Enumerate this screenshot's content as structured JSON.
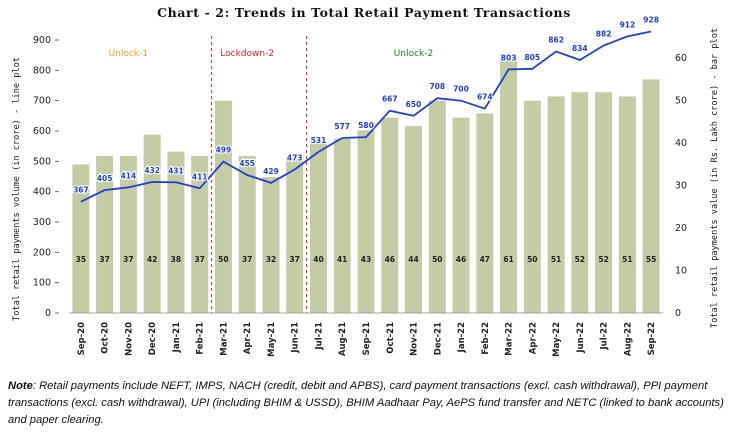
{
  "chart_data": {
    "type": "bar+line",
    "title": "Chart - 2: Trends in Total Retail Payment Transactions",
    "ylabel_left": "Total retail payments volume (in crore) - line plot",
    "ylabel_right": "Total retail payments value (in Rs. Lakh crore) - bar plot",
    "categories": [
      "Sep-20",
      "Oct-20",
      "Nov-20",
      "Dec-20",
      "Jan-21",
      "Feb-21",
      "Mar-21",
      "Apr-21",
      "May-21",
      "Jun-21",
      "Jul-21",
      "Aug-21",
      "Sep-21",
      "Oct-21",
      "Nov-21",
      "Dec-21",
      "Jan-22",
      "Feb-22",
      "Mar-22",
      "Apr-22",
      "May-22",
      "Jun-22",
      "Jul-22",
      "Aug-22",
      "Sep-22"
    ],
    "ylim_left": [
      0,
      900
    ],
    "yticks_left": [
      0,
      100,
      200,
      300,
      400,
      500,
      600,
      700,
      800,
      900
    ],
    "ylim_right": [
      0,
      64.2857
    ],
    "yticks_right": [
      0,
      10,
      20,
      30,
      40,
      50,
      60
    ],
    "series": [
      {
        "name": "Total retail payments value (in Rs. Lakh crore)",
        "type": "bar",
        "axis": "right",
        "color": "#c3cca2",
        "values": [
          35,
          37,
          37,
          42,
          38,
          37,
          50,
          37,
          32,
          37,
          40,
          41,
          43,
          46,
          44,
          50,
          46,
          47,
          61,
          50,
          51,
          52,
          52,
          51,
          55
        ]
      },
      {
        "name": "Total retail payments volume (in crore)",
        "type": "line",
        "axis": "left",
        "color": "#1f3fd6",
        "values": [
          367,
          405,
          414,
          432,
          431,
          411,
          499,
          455,
          429,
          473,
          531,
          577,
          580,
          667,
          650,
          708,
          700,
          674,
          803,
          805,
          862,
          834,
          882,
          912,
          928
        ]
      }
    ],
    "annotations": [
      {
        "label": "Unlock-1",
        "color": "#f0a020",
        "center_category": "Nov-20"
      },
      {
        "label": "Lockdown-2",
        "color": "#e02020",
        "center_category": "Apr-21"
      },
      {
        "label": "Unlock-2",
        "color": "#1e8a1e",
        "center_category": "Nov-21"
      }
    ],
    "phase_dividers": [
      {
        "after_category": "Feb-21",
        "color": "#e02020"
      },
      {
        "after_category": "Jun-21",
        "color": "#e02020"
      }
    ]
  },
  "note": {
    "label": "Note",
    "text": ": Retail payments include NEFT, IMPS, NACH (credit, debit and APBS), card payment transactions (excl. cash withdrawal), PPI payment transactions (excl. cash withdrawal), UPI (including BHIM & USSD), BHIM Aadhaar Pay, AePS fund transfer and NETC (linked to bank accounts) and paper clearing."
  }
}
